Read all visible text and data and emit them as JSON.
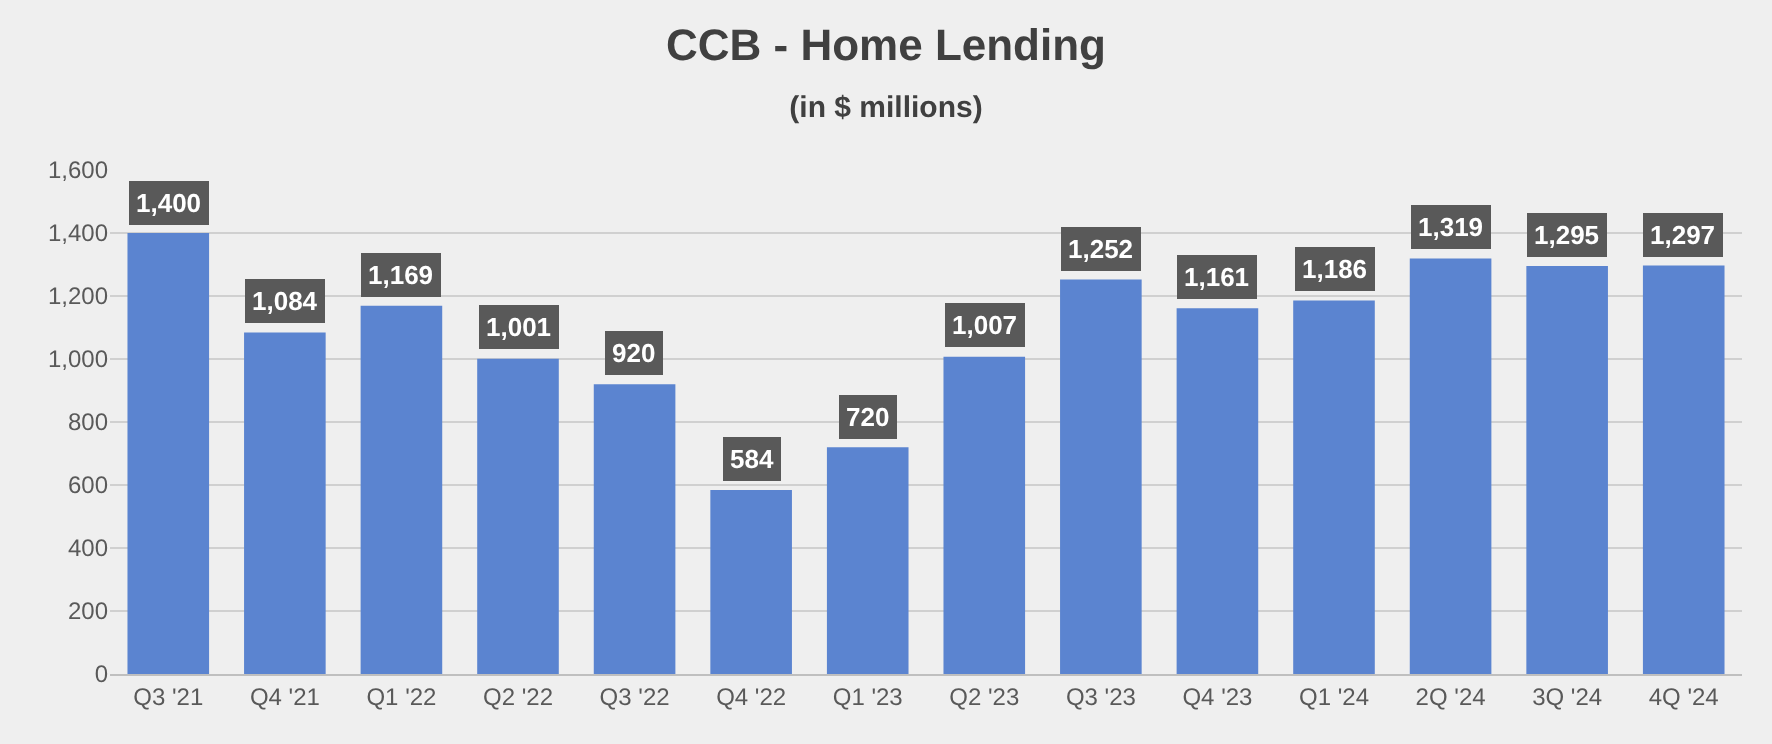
{
  "chart_data": {
    "type": "bar",
    "title": "CCB - Home Lending",
    "subtitle": "(in $ millions)",
    "categories": [
      "Q3 '21",
      "Q4 '21",
      "Q1 '22",
      "Q2 '22",
      "Q3 '22",
      "Q4 '22",
      "Q1 '23",
      "Q2 '23",
      "Q3 '23",
      "Q4 '23",
      "Q1 '24",
      "2Q '24",
      "3Q '24",
      "4Q '24"
    ],
    "values": [
      1400,
      1084,
      1169,
      1001,
      920,
      584,
      720,
      1007,
      1252,
      1161,
      1186,
      1319,
      1295,
      1297
    ],
    "value_labels": [
      "1,400",
      "1,084",
      "1,169",
      "1,001",
      "920",
      "584",
      "720",
      "1,007",
      "1,252",
      "1,161",
      "1,186",
      "1,319",
      "1,295",
      "1,297"
    ],
    "color": "#5b84d0",
    "ylim": [
      0,
      1600
    ],
    "yticks": [
      0,
      {
        "value": 200,
        "label": "200"
      },
      {
        "value": 400,
        "label": "400"
      },
      {
        "value": 600,
        "label": "600"
      },
      {
        "value": 800,
        "label": "800"
      },
      {
        "value": 1000,
        "label": "1,000"
      },
      {
        "value": 1200,
        "label": "1,200"
      },
      {
        "value": 1400,
        "label": "1,400"
      },
      {
        "value": 1600,
        "label": "1,600"
      }
    ],
    "grid": "y"
  }
}
